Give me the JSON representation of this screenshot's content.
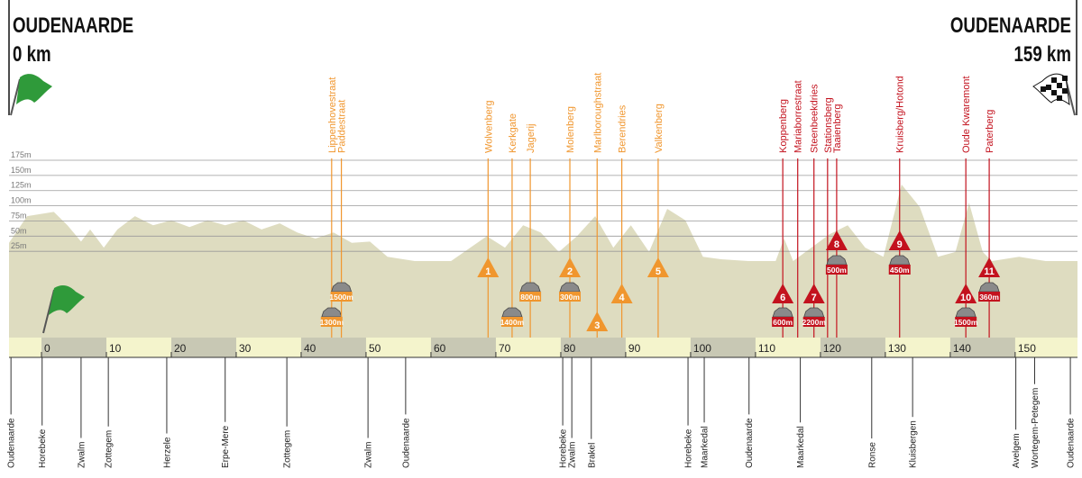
{
  "chart_data": {
    "type": "area",
    "start_name": "OUDENAARDE",
    "start_km": "0 km",
    "finish_name": "OUDENAARDE",
    "finish_km": "159 km",
    "color": "#dedcc0",
    "grid": true,
    "xlim": [
      -5,
      159.6
    ],
    "xticks": [
      0,
      10,
      20,
      30,
      40,
      50,
      60,
      70,
      80,
      90,
      100,
      110,
      120,
      130,
      140,
      150
    ],
    "ylim": [
      -117,
      175
    ],
    "yticks": [
      {
        "value": 25,
        "label": "25m"
      },
      {
        "value": 50,
        "label": "50m"
      },
      {
        "value": 75,
        "label": "75m"
      },
      {
        "value": 100,
        "label": "100m"
      },
      {
        "value": 125,
        "label": "125m"
      },
      {
        "value": 150,
        "label": "150m"
      },
      {
        "value": 175,
        "label": "175m"
      }
    ],
    "x": [
      -5,
      -2.2,
      1.9,
      4,
      6.1,
      7.5,
      9.6,
      11.7,
      14.4,
      17.2,
      20,
      22.8,
      25.6,
      28.3,
      31.1,
      33.9,
      36.7,
      39.4,
      42.2,
      45,
      47.8,
      50.6,
      53.3,
      57.5,
      63.1,
      68.6,
      71.4,
      74.2,
      76.9,
      79.7,
      82.5,
      85.3,
      88.1,
      90.8,
      93.6,
      96.4,
      99.2,
      101.9,
      104.7,
      108.9,
      113.1,
      114.4,
      115.8,
      118.6,
      121.4,
      124.2,
      126.9,
      129.7,
      132.5,
      135.3,
      138.1,
      140.8,
      142.9,
      145,
      146.4,
      150.6,
      154.7,
      159.6
    ],
    "values": [
      39,
      83,
      90,
      68,
      41,
      61,
      31,
      61,
      83,
      68,
      76,
      65,
      76,
      68,
      76,
      61,
      71,
      56,
      46,
      56,
      39,
      41,
      16,
      9,
      9,
      50,
      31,
      68,
      56,
      24,
      50,
      83,
      31,
      68,
      24,
      95,
      76,
      16,
      12,
      9,
      9,
      46,
      9,
      31,
      53,
      68,
      31,
      16,
      135,
      98,
      16,
      24,
      105,
      24,
      9,
      16,
      9,
      9
    ],
    "climbs": [
      {
        "name": "Lippenhovestraat",
        "km": 44.7,
        "cobbles": "1300m",
        "color": "#f0962e"
      },
      {
        "name": "Paddestraat",
        "km": 46.2,
        "cobbles": "1500m",
        "color": "#f0962e"
      },
      {
        "name": "Wolvenberg",
        "km": 68.8,
        "number": "1",
        "color": "#f0962e"
      },
      {
        "name": "Kerkgate",
        "km": 72.5,
        "cobbles": "1400m",
        "color": "#f0962e"
      },
      {
        "name": "Jagerij",
        "km": 75.3,
        "cobbles": "800m",
        "color": "#f0962e"
      },
      {
        "name": "Molenberg",
        "km": 81.4,
        "number": "2",
        "cobbles": "300m",
        "color": "#f0962e"
      },
      {
        "name": "Marlboroughstraat",
        "km": 85.6,
        "number": "3",
        "color": "#f0962e"
      },
      {
        "name": "Berendries",
        "km": 89.4,
        "number": "4",
        "color": "#f0962e"
      },
      {
        "name": "Valkenberg",
        "km": 95,
        "number": "5",
        "color": "#f0962e"
      },
      {
        "name": "Koppenberg",
        "km": 114.2,
        "number": "6",
        "cobbles": "600m",
        "color": "#c3121e"
      },
      {
        "name": "Mariaborrestraat",
        "km": 116.5,
        "color": "#c3121e"
      },
      {
        "name": "Steenbeekdries",
        "km": 119,
        "number": "7",
        "cobbles": "2200m",
        "color": "#c3121e"
      },
      {
        "name": "Stationsberg",
        "km": 121.1,
        "color": "#c3121e"
      },
      {
        "name": "Taaienberg",
        "km": 122.5,
        "number": "8",
        "cobbles": "500m",
        "color": "#c3121e"
      },
      {
        "name": "Kruisberg/Hotond",
        "km": 132.2,
        "number": "9",
        "cobbles": "450m",
        "color": "#c3121e"
      },
      {
        "name": "Oude Kwaremont",
        "km": 142.4,
        "number": "10",
        "cobbles": "1500m",
        "color": "#c3121e"
      },
      {
        "name": "Paterberg",
        "km": 146,
        "number": "11",
        "cobbles": "360m",
        "color": "#c3121e"
      }
    ],
    "towns": [
      {
        "name": "Oudenaarde",
        "km": -4.7
      },
      {
        "name": "Horebeke",
        "km": 0.1
      },
      {
        "name": "Zwalm",
        "km": 6.1
      },
      {
        "name": "Zottegem",
        "km": 10.3
      },
      {
        "name": "Herzele",
        "km": 19.3
      },
      {
        "name": "Erpe-Mere",
        "km": 28.3
      },
      {
        "name": "Zottegem",
        "km": 37.8
      },
      {
        "name": "Zwalm",
        "km": 50.3
      },
      {
        "name": "Oudenaarde",
        "km": 56.1
      },
      {
        "name": "Horebeke",
        "km": 80.3
      },
      {
        "name": "Zwalm",
        "km": 81.7
      },
      {
        "name": "Brakel",
        "km": 84.7
      },
      {
        "name": "Horebeke",
        "km": 99.6
      },
      {
        "name": "Maarkedal",
        "km": 102.1
      },
      {
        "name": "Oudenaarde",
        "km": 109
      },
      {
        "name": "Maarkedal",
        "km": 116.9
      },
      {
        "name": "Ronse",
        "km": 127.9
      },
      {
        "name": "Kluisbergen",
        "km": 134.2
      },
      {
        "name": "Avelgem",
        "km": 150.1
      },
      {
        "name": "Wortegem-Petegem",
        "km": 153
      },
      {
        "name": "Oudenaarde",
        "km": 158.5
      }
    ]
  }
}
